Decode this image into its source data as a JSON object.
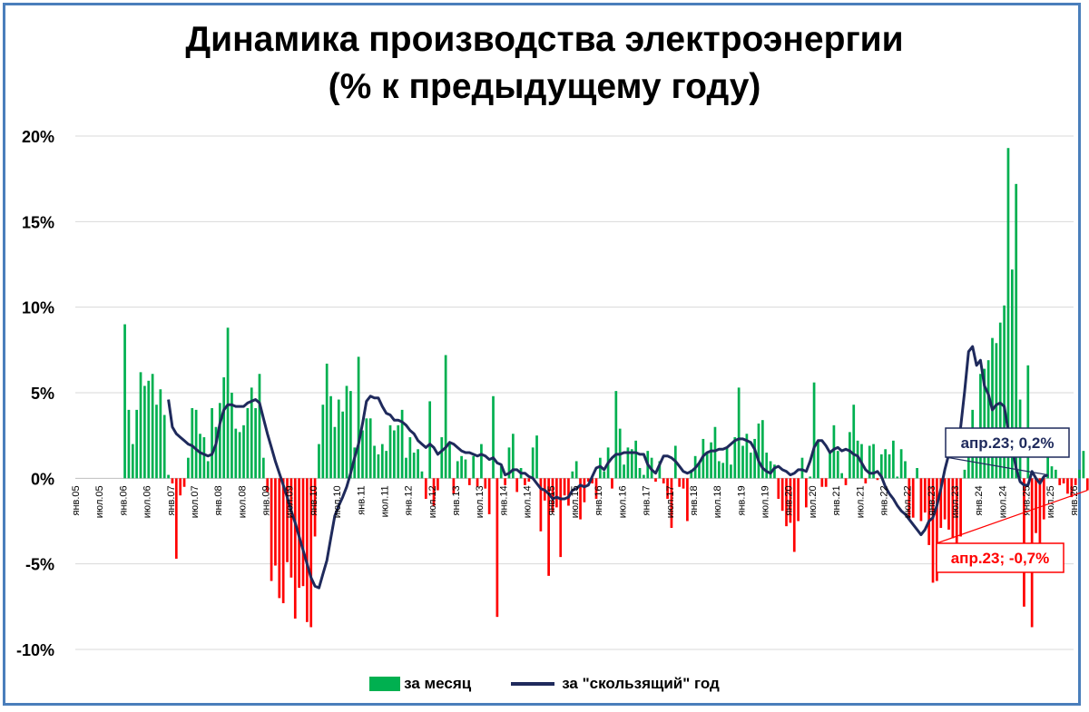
{
  "title": {
    "line1": "Динамика производства электроэнергии",
    "line2": "(% к предыдущему году)"
  },
  "colors": {
    "positive_bar": "#00b050",
    "negative_bar": "#ff0000",
    "line": "#1f2a5c",
    "grid": "#d9d9d9",
    "frame": "#4a7ebb",
    "annotation_blue": "#1f2a5c",
    "annotation_red": "#ff0000"
  },
  "legend": {
    "monthly": "за месяц",
    "rolling": "за \"скользящий\" год"
  },
  "annotations": {
    "rolling_last": "апр.23; 0,2%",
    "monthly_last": "апр.23; -0,7%"
  },
  "chart_data": {
    "type": "bar+line",
    "x_start": "2005-01",
    "x_end": "2026-01",
    "y_ticks": [
      "20%",
      "15%",
      "10%",
      "5%",
      "0%",
      "-5%",
      "-10%"
    ],
    "ylim": [
      -10,
      20
    ],
    "x_tick_labels": [
      "янв.05",
      "июл.05",
      "янв.06",
      "июл.06",
      "янв.07",
      "июл.07",
      "янв.08",
      "июл.08",
      "янв.09",
      "июл.09",
      "янв.10",
      "июл.10",
      "янв.11",
      "июл.11",
      "янв.12",
      "июл.12",
      "янв.13",
      "июл.13",
      "янв.14",
      "июл.14",
      "янв.15",
      "июл.15",
      "янв.16",
      "июл.16",
      "янв.17",
      "июл.17",
      "янв.18",
      "июл.18",
      "янв.19",
      "июл.19",
      "янв.20",
      "июл.20",
      "янв.21",
      "июл.21",
      "янв.22",
      "июл.22",
      "янв.23",
      "июл.23",
      "янв.24",
      "июл.24",
      "янв.25",
      "июл.25",
      "янв.26"
    ],
    "series": [
      {
        "name": "за месяц",
        "kind": "bar",
        "start": "2006-01",
        "values": [
          9.0,
          4.0,
          2.0,
          4.0,
          6.2,
          5.4,
          5.7,
          6.1,
          4.3,
          5.2,
          3.7,
          0.2,
          -0.3,
          -4.7,
          -1.0,
          -0.5,
          1.2,
          4.1,
          4.0,
          2.6,
          2.4,
          1.0,
          4.1,
          3.0,
          4.4,
          5.9,
          8.8,
          5.0,
          2.9,
          2.7,
          3.1,
          4.1,
          5.3,
          4.1,
          6.1,
          1.2,
          -0.8,
          -6.0,
          -5.1,
          -7.0,
          -7.3,
          -4.9,
          -5.8,
          -8.2,
          -6.4,
          -6.3,
          -8.4,
          -8.7,
          -3.4,
          2.0,
          4.3,
          6.7,
          4.8,
          3.0,
          4.6,
          3.9,
          5.4,
          5.1,
          1.8,
          7.1,
          2.8,
          3.5,
          3.5,
          1.9,
          1.4,
          2.0,
          1.6,
          3.1,
          2.8,
          3.1,
          4.0,
          1.2,
          2.4,
          1.5,
          1.7,
          0.4,
          -1.2,
          4.5,
          -1.6,
          -0.7,
          2.4,
          7.2,
          2.0,
          -0.9,
          1.0,
          1.3,
          1.1,
          -0.4,
          1.3,
          -0.5,
          2.0,
          -0.6,
          -2.1,
          4.8,
          -8.1,
          0.7,
          -0.4,
          1.8,
          2.6,
          -0.8,
          0.6,
          -0.4,
          -0.2,
          1.8,
          2.5,
          -3.1,
          -1.3,
          -5.7,
          -2.0,
          -1.7,
          -4.6,
          -1.0,
          -1.6,
          0.4,
          1.0,
          -2.4,
          -1.4,
          -0.2,
          -0.3,
          -1.2,
          1.2,
          0.4,
          1.8,
          -0.6,
          5.1,
          2.9,
          0.8,
          1.8,
          1.7,
          2.2,
          0.6,
          0.2,
          1.6,
          1.2,
          -0.2,
          1.0,
          -0.3,
          -1.2,
          -2.9,
          1.9,
          -0.5,
          -0.6,
          -2.5,
          0.5,
          1.3,
          0.9,
          2.3,
          1.5,
          2.1,
          3.0,
          1.0,
          0.9,
          1.8,
          0.8,
          2.4,
          5.3,
          1.9,
          2.6,
          1.5,
          2.3,
          3.2,
          3.4,
          1.5,
          1.0,
          0.8,
          -1.2,
          -1.9,
          -2.8,
          -2.6,
          -4.3,
          -2.5,
          1.2,
          -1.7,
          0.1,
          5.6,
          2.2,
          -0.5,
          -0.5,
          1.5,
          3.1,
          1.6,
          0.3,
          -0.4,
          2.7,
          4.3,
          2.2,
          2.0,
          -0.3,
          1.9,
          2.0,
          -0.1,
          1.4,
          1.7,
          1.4,
          2.2,
          0.1,
          1.7,
          1.0,
          -2.4,
          -2.3,
          0.6,
          -2.5,
          -2.0,
          -3.9,
          -6.1,
          -6.0,
          -2.9,
          -2.4,
          -3.0,
          -3.5,
          -4.0,
          -3.4,
          0.5,
          1.7,
          4.0,
          2.0,
          6.1,
          6.4,
          6.9,
          8.2,
          7.9,
          9.1,
          10.1,
          19.3,
          12.2,
          17.2,
          4.6,
          -7.5,
          6.6,
          -8.7,
          -3.2,
          -4.9,
          -2.4,
          2.9,
          0.7,
          0.5,
          -0.4,
          -0.3,
          -0.9,
          -1.1,
          -0.4,
          0.5,
          1.6,
          -0.7
        ]
      },
      {
        "name": "за \"скользящий\" год",
        "kind": "line",
        "start": "2006-12",
        "values": [
          4.6,
          3.0,
          2.6,
          2.4,
          2.2,
          2.0,
          1.9,
          1.7,
          1.5,
          1.4,
          1.3,
          1.4,
          2.0,
          3.2,
          4.0,
          4.3,
          4.3,
          4.2,
          4.2,
          4.2,
          4.4,
          4.5,
          4.6,
          4.4,
          3.5,
          2.6,
          1.8,
          1.0,
          0.3,
          -0.4,
          -1.1,
          -1.9,
          -2.6,
          -3.4,
          -4.2,
          -5.0,
          -5.8,
          -6.3,
          -6.4,
          -5.6,
          -4.8,
          -3.5,
          -2.2,
          -1.6,
          -1.1,
          -0.5,
          0.3,
          1.2,
          2.0,
          3.2,
          4.5,
          4.8,
          4.7,
          4.7,
          4.2,
          3.8,
          3.7,
          3.4,
          3.4,
          3.3,
          3.1,
          2.8,
          2.6,
          2.2,
          2.0,
          1.8,
          2.0,
          1.8,
          1.4,
          1.6,
          1.8,
          2.1,
          2.0,
          1.8,
          1.6,
          1.5,
          1.5,
          1.4,
          1.3,
          1.4,
          1.3,
          1.1,
          1.2,
          0.9,
          0.8,
          0.2,
          0.3,
          0.5,
          0.5,
          0.3,
          0.3,
          0.1,
          0.0,
          -0.3,
          -0.6,
          -0.7,
          -0.9,
          -1.2,
          -1.1,
          -1.2,
          -1.2,
          -1.1,
          -0.7,
          -0.6,
          -0.4,
          -0.5,
          -0.4,
          0.1,
          0.6,
          0.7,
          0.5,
          0.9,
          1.2,
          1.4,
          1.4,
          1.5,
          1.5,
          1.5,
          1.5,
          1.4,
          1.4,
          0.8,
          0.5,
          0.3,
          0.8,
          1.3,
          1.3,
          1.2,
          1.0,
          0.7,
          0.4,
          0.3,
          0.4,
          0.6,
          0.9,
          1.3,
          1.5,
          1.6,
          1.6,
          1.7,
          1.7,
          1.8,
          2.0,
          2.2,
          2.3,
          2.3,
          2.2,
          2.1,
          1.7,
          1.0,
          0.6,
          0.4,
          0.3,
          0.6,
          0.7,
          0.5,
          0.4,
          0.2,
          0.3,
          0.5,
          0.5,
          0.4,
          1.0,
          1.8,
          2.2,
          2.2,
          1.9,
          1.5,
          1.7,
          1.8,
          1.6,
          1.7,
          1.6,
          1.4,
          1.3,
          0.9,
          0.5,
          0.3,
          0.3,
          0.4,
          0.1,
          -0.5,
          -0.9,
          -1.2,
          -1.6,
          -1.9,
          -2.1,
          -2.4,
          -2.7,
          -3.0,
          -3.3,
          -3.0,
          -2.5,
          -2.3,
          -1.6,
          -0.6,
          0.5,
          1.4,
          2.2,
          1.8,
          3.0,
          5.1,
          7.4,
          7.7,
          6.6,
          6.9,
          5.4,
          4.9,
          4.0,
          4.3,
          4.4,
          4.2,
          2.8,
          1.8,
          0.6,
          -0.2,
          -0.4,
          -0.4,
          0.4,
          0.0,
          -0.3,
          0.1,
          0.2
        ]
      }
    ]
  }
}
